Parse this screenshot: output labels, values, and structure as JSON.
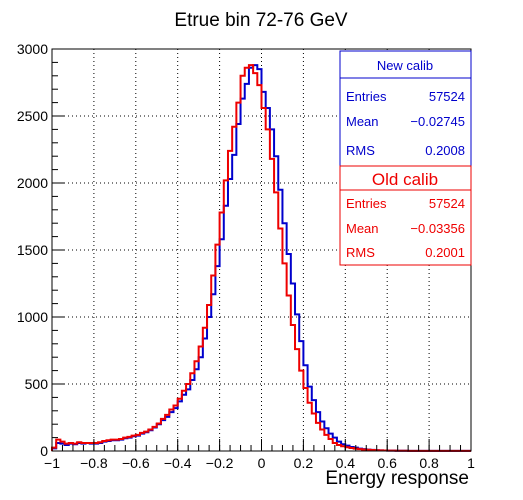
{
  "chart_data": {
    "type": "histogram",
    "title": "Etrue bin 72-76 GeV",
    "xlabel": "Energy response",
    "ylabel": "",
    "xlim": [
      -1,
      1
    ],
    "ylim": [
      0,
      3000
    ],
    "grid": true,
    "x_ticks": [
      "−1",
      "−0.8",
      "−0.6",
      "−0.4",
      "−0.2",
      "0",
      "0.2",
      "0.4",
      "0.6",
      "0.8",
      "1"
    ],
    "y_ticks": [
      "0",
      "500",
      "1000",
      "1500",
      "2000",
      "2500",
      "3000"
    ],
    "bin_edges": [
      -1,
      -0.98,
      -0.96,
      -0.94,
      -0.92,
      -0.9,
      -0.88,
      -0.86,
      -0.84,
      -0.82,
      -0.8,
      -0.78,
      -0.76,
      -0.74,
      -0.72,
      -0.7,
      -0.68,
      -0.66,
      -0.64,
      -0.62,
      -0.6,
      -0.58,
      -0.56,
      -0.54,
      -0.52,
      -0.5,
      -0.48,
      -0.46,
      -0.44,
      -0.42,
      -0.4,
      -0.38,
      -0.36,
      -0.34,
      -0.32,
      -0.3,
      -0.28,
      -0.26,
      -0.24,
      -0.22,
      -0.2,
      -0.18,
      -0.16,
      -0.14,
      -0.12,
      -0.1,
      -0.08,
      -0.06,
      -0.04,
      -0.02,
      0,
      0.02,
      0.04,
      0.06,
      0.08,
      0.1,
      0.12,
      0.14,
      0.16,
      0.18,
      0.2,
      0.22,
      0.24,
      0.26,
      0.28,
      0.3,
      0.32,
      0.34,
      0.36,
      0.38,
      0.4,
      0.42,
      0.44,
      0.46,
      0.48,
      0.5,
      0.52,
      0.54,
      0.56,
      0.58,
      0.6,
      0.62,
      0.64,
      0.66,
      0.68,
      0.7,
      0.72,
      0.74,
      0.76,
      0.78,
      0.8,
      0.82,
      0.84,
      0.86,
      0.88,
      0.9,
      0.92,
      0.94,
      0.96,
      0.98,
      1
    ],
    "series": [
      {
        "name": "New calib",
        "color": "#0000cc",
        "entries": "57524",
        "mean": "−0.02745",
        "rms": "0.2008",
        "values": [
          20,
          60,
          55,
          45,
          55,
          50,
          60,
          55,
          60,
          55,
          55,
          60,
          70,
          75,
          80,
          80,
          85,
          95,
          100,
          110,
          115,
          130,
          140,
          155,
          175,
          200,
          230,
          255,
          290,
          320,
          370,
          420,
          460,
          530,
          610,
          700,
          840,
          1000,
          1170,
          1380,
          1580,
          1830,
          2030,
          2210,
          2440,
          2630,
          2740,
          2860,
          2880,
          2850,
          2680,
          2560,
          2400,
          2200,
          1950,
          1700,
          1470,
          1250,
          1020,
          820,
          640,
          480,
          380,
          290,
          220,
          170,
          130,
          100,
          70,
          50,
          40,
          30,
          25,
          18,
          14,
          10,
          8,
          6,
          5,
          4,
          3,
          3,
          2,
          2,
          2,
          1,
          1,
          1,
          1,
          1,
          1,
          1,
          1,
          1,
          1,
          1,
          1,
          1,
          1,
          1
        ]
      },
      {
        "name": "Old calib",
        "color": "#ee0000",
        "entries": "57524",
        "mean": "−0.03356",
        "rms": "0.2001",
        "values": [
          25,
          85,
          70,
          55,
          60,
          55,
          65,
          60,
          60,
          60,
          60,
          65,
          75,
          80,
          85,
          85,
          90,
          100,
          105,
          115,
          120,
          135,
          145,
          160,
          180,
          205,
          240,
          270,
          310,
          340,
          390,
          450,
          500,
          580,
          670,
          780,
          920,
          1090,
          1310,
          1540,
          1780,
          2020,
          2240,
          2420,
          2600,
          2800,
          2860,
          2880,
          2820,
          2730,
          2560,
          2400,
          2180,
          1930,
          1660,
          1400,
          1160,
          940,
          760,
          600,
          470,
          360,
          280,
          210,
          160,
          120,
          90,
          60,
          45,
          35,
          28,
          22,
          18,
          14,
          11,
          9,
          7,
          6,
          5,
          4,
          3,
          3,
          2,
          2,
          2,
          1,
          1,
          1,
          1,
          1,
          1,
          1,
          1,
          1,
          1,
          1,
          1,
          1,
          1,
          1
        ]
      }
    ],
    "legend_placement": "top-right",
    "stat_labels": {
      "entries": "Entries",
      "mean": "Mean",
      "rms": "RMS"
    }
  }
}
